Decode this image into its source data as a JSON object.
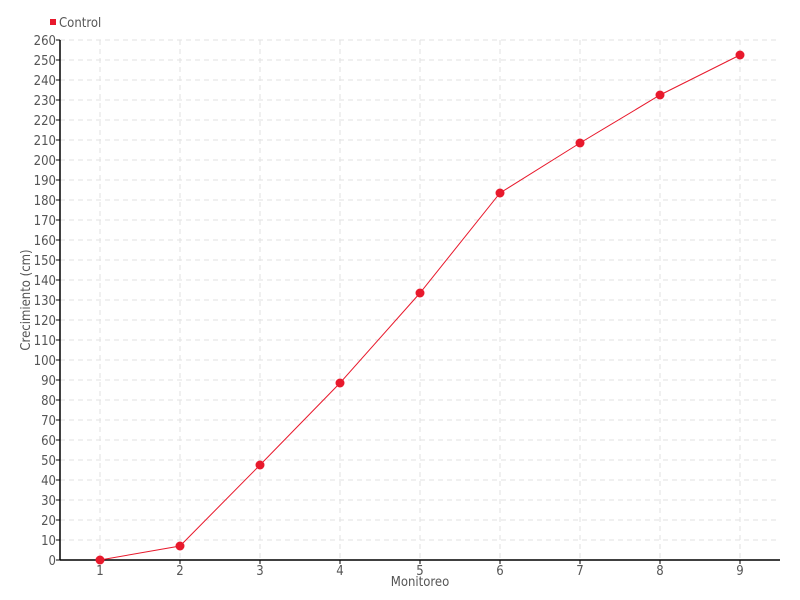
{
  "chart_data": {
    "type": "line",
    "title": "",
    "xlabel": "Monitoreo",
    "ylabel": "Crecimiento (cm)",
    "categories": [
      "1",
      "2",
      "3",
      "4",
      "5",
      "6",
      "7",
      "8",
      "9"
    ],
    "series": [
      {
        "name": "Control",
        "color": "#e8192c",
        "values": [
          0,
          7,
          47.5,
          88.5,
          133.5,
          183.5,
          208.5,
          232.5,
          252.5
        ]
      }
    ],
    "ylim": [
      0,
      260
    ],
    "ytick_step": 10,
    "grid": true,
    "legend": "top-left"
  }
}
